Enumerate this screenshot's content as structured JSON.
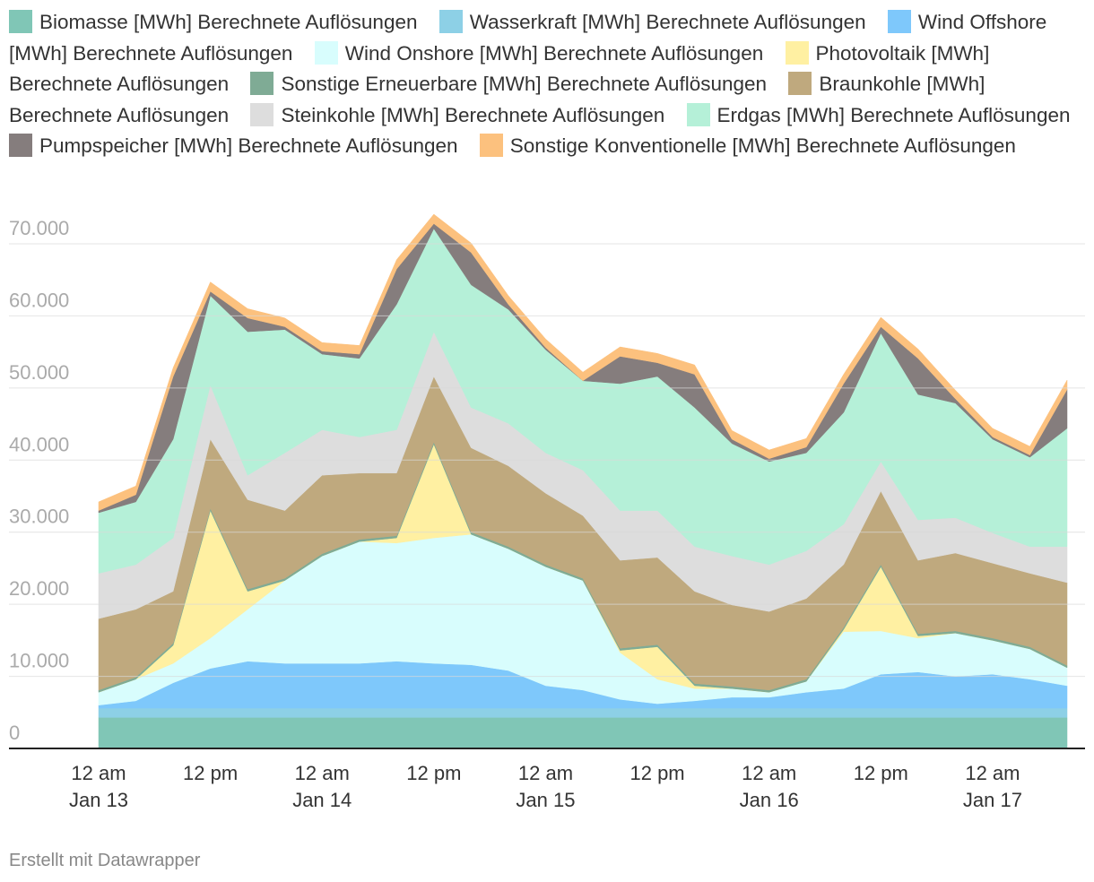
{
  "chart_data": {
    "type": "stacked-area",
    "x": [
      "Jan 13 00:00",
      "Jan 13 04:00",
      "Jan 13 08:00",
      "Jan 13 12:00",
      "Jan 13 16:00",
      "Jan 13 20:00",
      "Jan 14 00:00",
      "Jan 14 04:00",
      "Jan 14 08:00",
      "Jan 14 12:00",
      "Jan 14 16:00",
      "Jan 14 20:00",
      "Jan 15 00:00",
      "Jan 15 04:00",
      "Jan 15 08:00",
      "Jan 15 12:00",
      "Jan 15 16:00",
      "Jan 15 20:00",
      "Jan 16 00:00",
      "Jan 16 04:00",
      "Jan 16 08:00",
      "Jan 16 12:00",
      "Jan 16 16:00",
      "Jan 16 20:00",
      "Jan 17 00:00",
      "Jan 17 04:00",
      "Jan 17 08:00"
    ],
    "series": [
      {
        "name": "Biomasse [MWh] Berechnete Auflösungen",
        "color": "#80c6b6",
        "values": [
          4300,
          4300,
          4300,
          4300,
          4300,
          4300,
          4300,
          4300,
          4300,
          4300,
          4300,
          4300,
          4300,
          4300,
          4300,
          4300,
          4300,
          4300,
          4300,
          4300,
          4300,
          4300,
          4300,
          4300,
          4300,
          4300,
          4300
        ]
      },
      {
        "name": "Wasserkraft [MWh] Berechnete Auflösungen",
        "color": "#8dd0e6",
        "values": [
          1300,
          1300,
          1300,
          1300,
          1300,
          1300,
          1300,
          1300,
          1300,
          1300,
          1300,
          1300,
          1300,
          1300,
          1300,
          1300,
          1300,
          1300,
          1300,
          1300,
          1300,
          1300,
          1300,
          1300,
          1300,
          1300,
          1300
        ]
      },
      {
        "name": "Wind Offshore [MWh] Berechnete Auflösungen",
        "color": "#7ec8fb",
        "values": [
          400,
          1000,
          3500,
          5500,
          6500,
          6200,
          6200,
          6200,
          6500,
          6200,
          6000,
          5200,
          3100,
          2500,
          1200,
          600,
          1000,
          1500,
          1500,
          2200,
          2700,
          4700,
          5000,
          4400,
          4700,
          4000,
          3100
        ]
      },
      {
        "name": "Wind Onshore [MWh] Berechnete Auflösungen",
        "color": "#d8fdfd",
        "values": [
          1800,
          3000,
          2700,
          4200,
          7200,
          11500,
          14900,
          16900,
          16400,
          17400,
          18100,
          16900,
          16500,
          15200,
          6500,
          3400,
          1700,
          1200,
          700,
          1500,
          7900,
          6000,
          4700,
          6000,
          4700,
          4200,
          2500
        ]
      },
      {
        "name": "Photovoltaik [MWh] Berechnete Auflösungen",
        "color": "#fff0a2",
        "values": [
          0,
          0,
          2500,
          17700,
          2500,
          0,
          0,
          0,
          700,
          13000,
          0,
          0,
          0,
          0,
          300,
          4500,
          400,
          0,
          0,
          0,
          300,
          8900,
          300,
          0,
          0,
          0,
          0
        ]
      },
      {
        "name": "Sonstige Erneuerbare [MWh] Berechnete Auflösungen",
        "color": "#7fab95",
        "values": [
          300,
          300,
          300,
          300,
          300,
          300,
          300,
          300,
          300,
          300,
          300,
          300,
          300,
          300,
          300,
          300,
          300,
          300,
          300,
          300,
          300,
          300,
          300,
          300,
          300,
          300,
          300
        ]
      },
      {
        "name": "Braunkohle [MWh] Berechnete Auflösungen",
        "color": "#bfa97e",
        "values": [
          9900,
          9400,
          7200,
          9600,
          12400,
          9400,
          10900,
          9200,
          8700,
          9100,
          11700,
          11200,
          9900,
          8700,
          12200,
          12100,
          12800,
          11300,
          10900,
          11200,
          8700,
          10200,
          10200,
          10800,
          10400,
          10200,
          11500
        ]
      },
      {
        "name": "Steinkohle [MWh] Berechnete Auflösungen",
        "color": "#dddddd",
        "values": [
          6300,
          6200,
          7400,
          7500,
          3400,
          8000,
          6300,
          5000,
          6000,
          6200,
          5600,
          5900,
          5600,
          6300,
          6900,
          6500,
          6200,
          6800,
          6500,
          6600,
          5600,
          4100,
          5600,
          4900,
          4200,
          3700,
          5000
        ]
      },
      {
        "name": "Erdgas [MWh] Berechnete Auflösungen",
        "color": "#b5f0d8",
        "values": [
          8400,
          8700,
          13700,
          12400,
          19900,
          17100,
          10500,
          10900,
          17400,
          14300,
          17000,
          15800,
          14300,
          12400,
          17600,
          18600,
          19300,
          15600,
          14300,
          13600,
          15500,
          17800,
          17400,
          15900,
          13000,
          12400,
          16400
        ]
      },
      {
        "name": "Pumpspeicher [MWh] Berechnete Auflösungen",
        "color": "#857d7d",
        "values": [
          300,
          1000,
          8700,
          600,
          1900,
          400,
          400,
          600,
          4900,
          700,
          4500,
          700,
          300,
          0,
          3800,
          1900,
          4600,
          600,
          400,
          800,
          4000,
          900,
          5000,
          600,
          300,
          300,
          5400
        ]
      },
      {
        "name": "Sonstige Konventionelle [MWh] Berechnete Auflösungen",
        "color": "#fcc17e",
        "values": [
          1200,
          1200,
          1200,
          1300,
          1300,
          1200,
          1200,
          1200,
          1300,
          1300,
          1300,
          1200,
          1200,
          1200,
          1300,
          1300,
          1300,
          1200,
          1200,
          1200,
          1300,
          1300,
          1300,
          1200,
          1200,
          1200,
          1300
        ]
      }
    ],
    "ylim": [
      0,
      72000
    ],
    "yticks": [
      0,
      {
        "value": 10000,
        "label": "10.000"
      },
      {
        "value": 20000,
        "label": "20.000"
      },
      {
        "value": 30000,
        "label": "30.000"
      },
      {
        "value": 40000,
        "label": "40.000"
      },
      {
        "value": 50000,
        "label": "50.000"
      },
      {
        "value": 60000,
        "label": "60.000"
      },
      {
        "value": 70000,
        "label": "70.000"
      }
    ],
    "xticks": [
      {
        "value": "Jan 13 00:00",
        "label": "12 am",
        "date": "Jan 13"
      },
      {
        "value": "Jan 13 12:00",
        "label": "12 pm"
      },
      {
        "value": "Jan 14 00:00",
        "label": "12 am",
        "date": "Jan 14"
      },
      {
        "value": "Jan 14 12:00",
        "label": "12 pm"
      },
      {
        "value": "Jan 15 00:00",
        "label": "12 am",
        "date": "Jan 15"
      },
      {
        "value": "Jan 15 12:00",
        "label": "12 pm"
      },
      {
        "value": "Jan 16 00:00",
        "label": "12 am",
        "date": "Jan 16"
      },
      {
        "value": "Jan 16 12:00",
        "label": "12 pm"
      },
      {
        "value": "Jan 17 00:00",
        "label": "12 am",
        "date": "Jan 17"
      }
    ],
    "grid": true,
    "footer": "Erstellt mit Datawrapper"
  }
}
